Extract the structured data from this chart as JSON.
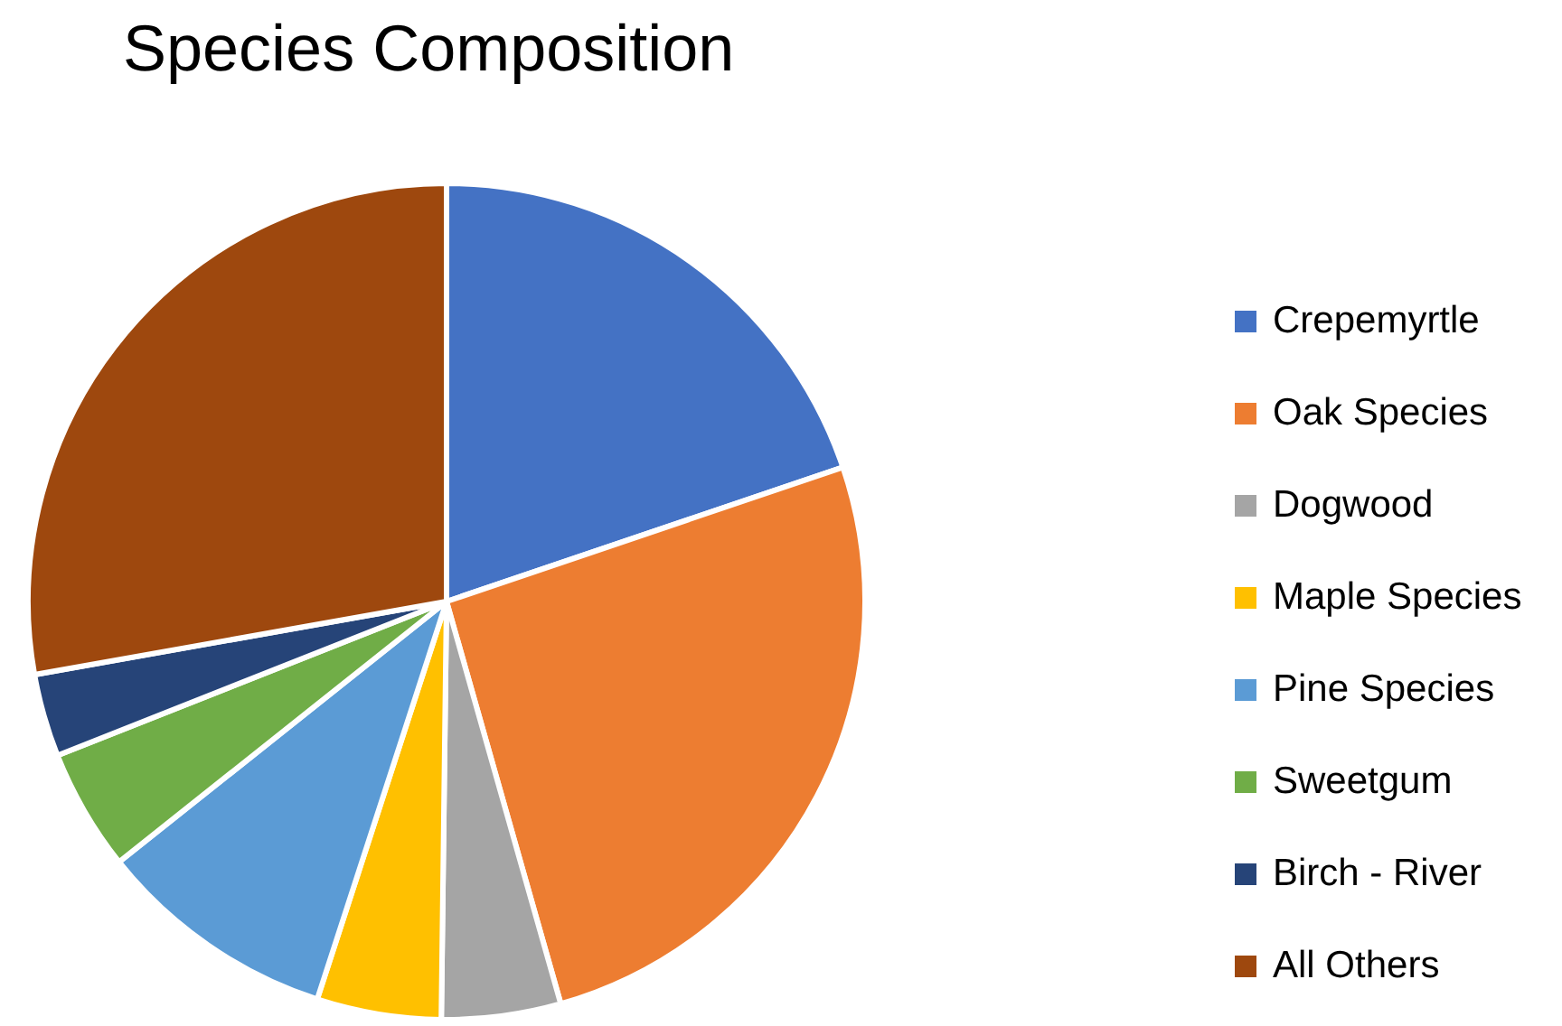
{
  "chart_data": {
    "type": "pie",
    "title": "Species Composition",
    "categories": [
      "Crepemyrtle",
      "Oak Species",
      "Dogwood",
      "Maple Species",
      "Pine Species",
      "Sweetgum",
      "Birch - River",
      "All Others"
    ],
    "values": [
      19.8,
      25.8,
      4.6,
      4.8,
      9.3,
      4.7,
      3.2,
      27.8
    ],
    "colors": [
      "#4472c4",
      "#ed7d31",
      "#a5a5a5",
      "#ffc000",
      "#5b9bd5",
      "#70ad47",
      "#264478",
      "#9e480e"
    ],
    "legend": "right"
  }
}
